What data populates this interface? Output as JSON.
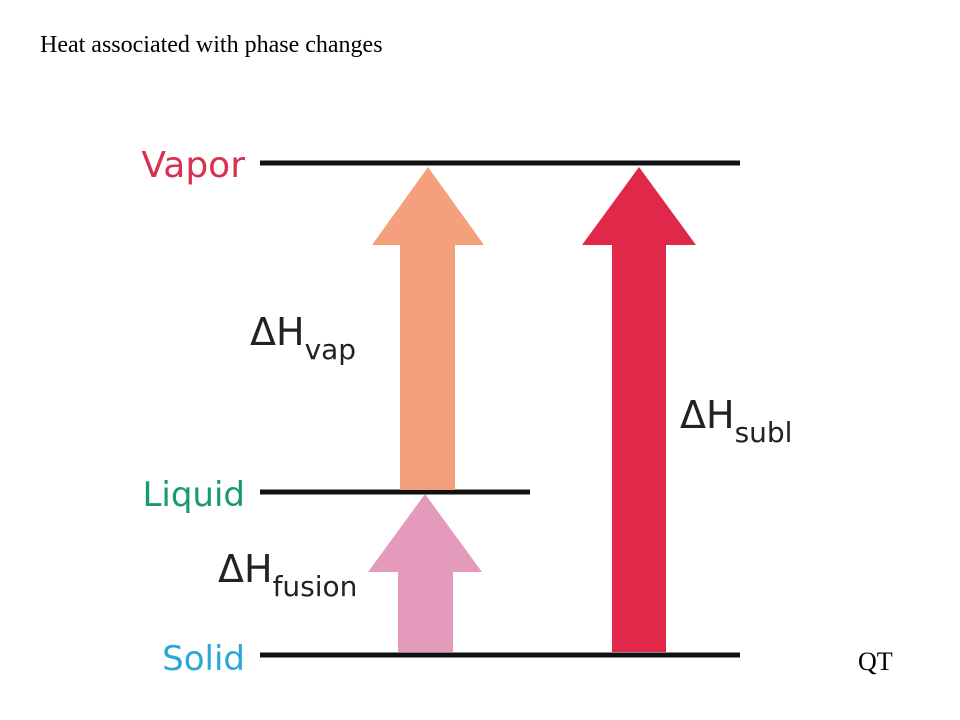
{
  "header": {
    "title": "Heat associated with phase changes"
  },
  "levels": [
    {
      "label": "Vapor"
    },
    {
      "label": "Liquid"
    },
    {
      "label": "Solid"
    }
  ],
  "arrows": [
    {
      "symbol": "ΔH",
      "subscript": "vap"
    },
    {
      "symbol": "ΔH",
      "subscript": "fusion"
    },
    {
      "symbol": "ΔH",
      "subscript": "subl"
    }
  ],
  "footer": {
    "corner": "QT"
  }
}
